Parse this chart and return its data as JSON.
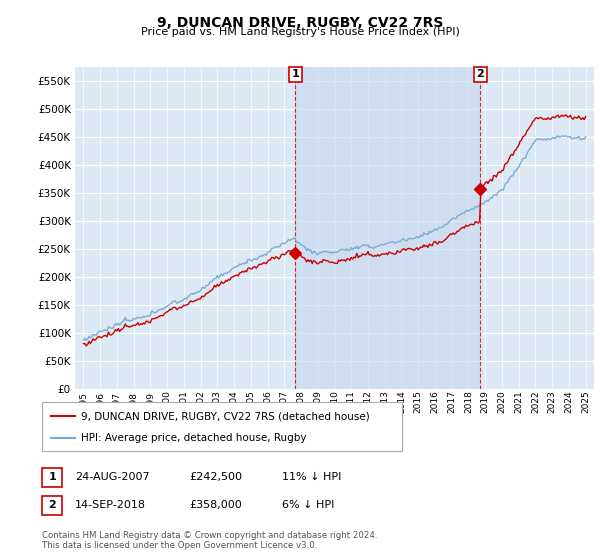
{
  "title": "9, DUNCAN DRIVE, RUGBY, CV22 7RS",
  "subtitle": "Price paid vs. HM Land Registry's House Price Index (HPI)",
  "legend_line1": "9, DUNCAN DRIVE, RUGBY, CV22 7RS (detached house)",
  "legend_line2": "HPI: Average price, detached house, Rugby",
  "sale1_date": "24-AUG-2007",
  "sale1_price": "£242,500",
  "sale1_pct": "11% ↓ HPI",
  "sale1_year": 2007.65,
  "sale1_value": 242500,
  "sale2_date": "14-SEP-2018",
  "sale2_price": "£358,000",
  "sale2_pct": "6% ↓ HPI",
  "sale2_year": 2018.71,
  "sale2_value": 358000,
  "footer": "Contains HM Land Registry data © Crown copyright and database right 2024.\nThis data is licensed under the Open Government Licence v3.0.",
  "bg_color": "#dce9f5",
  "shade_color": "#c5d8ee",
  "line_red": "#cc0000",
  "line_blue": "#7aadd4",
  "vline_color": "#cc0000",
  "ylim": [
    0,
    575000
  ],
  "yticks": [
    0,
    50000,
    100000,
    150000,
    200000,
    250000,
    300000,
    350000,
    400000,
    450000,
    500000,
    550000
  ],
  "xlim_start": 1994.5,
  "xlim_end": 2025.5
}
